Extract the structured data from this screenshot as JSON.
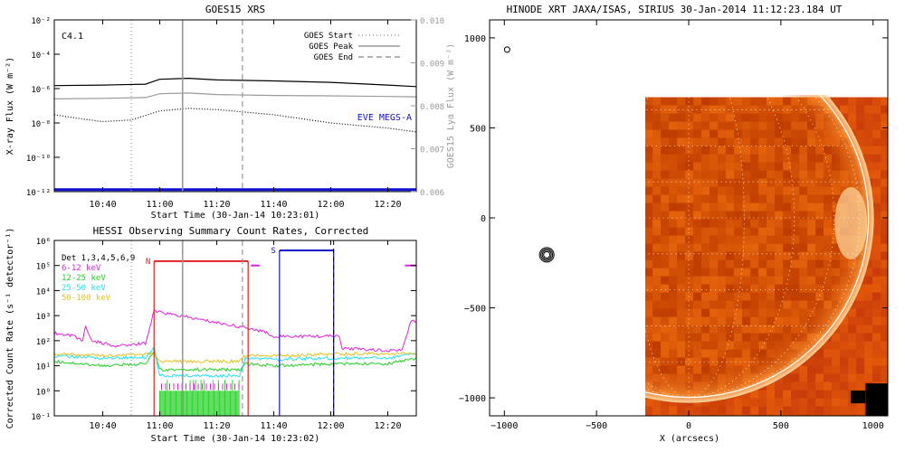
{
  "chart_data": [
    {
      "type": "line",
      "title": "GOES15 XRS",
      "xlabel": "Start Time (30-Jan-14 10:23:01)",
      "ylabel": "X-ray Flux (W m⁻²)",
      "y2label": "GOES15 Lyα Flux (W m⁻²)",
      "annotation": "C4.1",
      "annotation2": "EVE MEGS-A",
      "y_scale": "log",
      "ylim": [
        1e-12,
        0.01
      ],
      "y2lim": [
        0.006,
        0.01
      ],
      "xlim": [
        "10:23",
        "12:30"
      ],
      "x_ticks": [
        "10:40",
        "11:00",
        "11:20",
        "11:40",
        "12:00",
        "12:20"
      ],
      "y_ticks": [
        "10⁻²",
        "10⁻⁴",
        "10⁻⁶",
        "10⁻⁸",
        "10⁻¹⁰",
        "10⁻¹²"
      ],
      "y2_ticks": [
        "0.010",
        "0.009",
        "0.008",
        "0.007",
        "0.006"
      ],
      "markers": [
        {
          "name": "GOES Start",
          "time": "10:50",
          "style": "dotted"
        },
        {
          "name": "GOES Peak",
          "time": "11:08",
          "style": "solid"
        },
        {
          "name": "GOES End",
          "time": "11:29",
          "style": "dashed"
        }
      ],
      "series": [
        {
          "name": "",
          "color": "#000000",
          "x": [
            "10:23",
            "10:40",
            "10:55",
            "11:00",
            "11:10",
            "11:20",
            "11:40",
            "12:00",
            "12:20",
            "12:30"
          ],
          "y": [
            1.5e-06,
            1.6e-06,
            1.8e-06,
            3.5e-06,
            4e-06,
            3.2e-06,
            2.8e-06,
            2.3e-06,
            1.6e-06,
            1.3e-06
          ]
        },
        {
          "name": "",
          "color": "#999999",
          "x": [
            "10:23",
            "10:40",
            "10:55",
            "11:00",
            "11:10",
            "11:20",
            "11:40",
            "12:00",
            "12:20",
            "12:30"
          ],
          "y": [
            2.5e-07,
            2.7e-07,
            3e-07,
            5e-07,
            5.5e-07,
            4.5e-07,
            4e-07,
            3.8e-07,
            3.5e-07,
            3.3e-07
          ]
        },
        {
          "name": "",
          "color": "#000000",
          "style": "dotted",
          "x": [
            "10:23",
            "10:30",
            "10:40",
            "10:50",
            "11:00",
            "11:10",
            "11:20",
            "11:40",
            "12:00",
            "12:20",
            "12:30"
          ],
          "y": [
            3e-08,
            2e-08,
            1.2e-08,
            1.5e-08,
            5e-08,
            7e-08,
            6e-08,
            3e-08,
            1e-08,
            5e-09,
            3e-09
          ]
        },
        {
          "name": "EVE MEGS-A",
          "color": "#1010d0",
          "x": [
            "10:23",
            "12:30"
          ],
          "y": [
            1.3e-12,
            1.3e-12
          ]
        }
      ]
    },
    {
      "type": "line",
      "title": "HESSI Observing Summary Count Rates, Corrected",
      "xlabel": "Start Time (30-Jan-14 10:23:02)",
      "ylabel": "Corrected Count Rate (s⁻¹ detector⁻¹)",
      "y_scale": "log",
      "ylim": [
        0.1,
        1000000.0
      ],
      "xlim": [
        "10:23",
        "12:30"
      ],
      "x_ticks": [
        "10:40",
        "11:00",
        "11:20",
        "11:40",
        "12:00",
        "12:20"
      ],
      "y_ticks": [
        "10⁶",
        "10⁵",
        "10⁴",
        "10³",
        "10²",
        "10¹",
        "10⁰",
        "10⁻¹"
      ],
      "legend": [
        {
          "label": "Det 1,3,4,5,6,9",
          "color": "#000000"
        },
        {
          "label": "6-12 keV",
          "color": "#e020e0"
        },
        {
          "label": "12-25 keV",
          "color": "#20d020"
        },
        {
          "label": "25-50 keV",
          "color": "#20e0f0"
        },
        {
          "label": "50-100 keV",
          "color": "#e0c020"
        }
      ],
      "flags": [
        {
          "label": "N",
          "color": "#e02020",
          "start": "10:58",
          "end": "11:31",
          "level": 150000.0
        },
        {
          "label": "S",
          "color": "#1010d0",
          "start": "11:42",
          "end": "12:01",
          "level": 400000.0
        }
      ],
      "series": [
        {
          "name": "6-12 keV",
          "color": "#e020e0",
          "x": [
            "10:23",
            "10:30",
            "10:33",
            "10:34",
            "10:36",
            "10:45",
            "10:55",
            "10:58",
            "11:32",
            "11:38",
            "11:40",
            "12:03",
            "12:04",
            "12:20",
            "12:25",
            "12:28",
            "12:30"
          ],
          "y": [
            200,
            150,
            100,
            400,
            100,
            60,
            80,
            1500,
            300,
            200,
            150,
            150,
            50,
            40,
            40,
            600,
            600
          ]
        },
        {
          "name": "12-25 keV",
          "color": "#20d020",
          "x": [
            "10:23",
            "10:40",
            "10:55",
            "10:58",
            "11:00",
            "11:28",
            "11:30",
            "11:40",
            "12:03",
            "12:20",
            "12:30"
          ],
          "y": [
            15,
            10,
            12,
            40,
            7,
            7,
            12,
            10,
            12,
            12,
            20
          ]
        },
        {
          "name": "25-50 keV",
          "color": "#20e0f0",
          "x": [
            "10:23",
            "10:40",
            "10:55",
            "10:58",
            "11:00",
            "11:28",
            "11:30",
            "11:40",
            "12:03",
            "12:20",
            "12:30"
          ],
          "y": [
            25,
            20,
            22,
            50,
            4,
            4,
            20,
            18,
            20,
            20,
            30
          ]
        },
        {
          "name": "50-100 keV",
          "color": "#e0c020",
          "x": [
            "10:23",
            "10:40",
            "10:58",
            "11:00",
            "11:28",
            "11:30",
            "11:40",
            "12:03",
            "12:20",
            "12:30"
          ],
          "y": [
            30,
            25,
            30,
            15,
            15,
            25,
            25,
            30,
            30,
            30
          ]
        }
      ]
    },
    {
      "type": "heatmap",
      "title": "HINODE XRT JAXA/ISAS, SIRIUS 30-Jan-2014 11:12:23.184 UT",
      "xlabel": "X (arcsecs)",
      "ylabel": "",
      "xlim": [
        -1080,
        1080
      ],
      "ylim": [
        -1100,
        1100
      ],
      "x_ticks": [
        "−1000",
        "−500",
        "0",
        "500",
        "1000"
      ],
      "y_ticks": [
        "1000",
        "500",
        "0",
        "−500",
        "−1000"
      ],
      "image_extent_x": [
        -240,
        1080
      ],
      "image_extent_y": [
        -1100,
        670
      ],
      "solar_radius_arcsec": 975,
      "colormap": "red-orange"
    }
  ]
}
